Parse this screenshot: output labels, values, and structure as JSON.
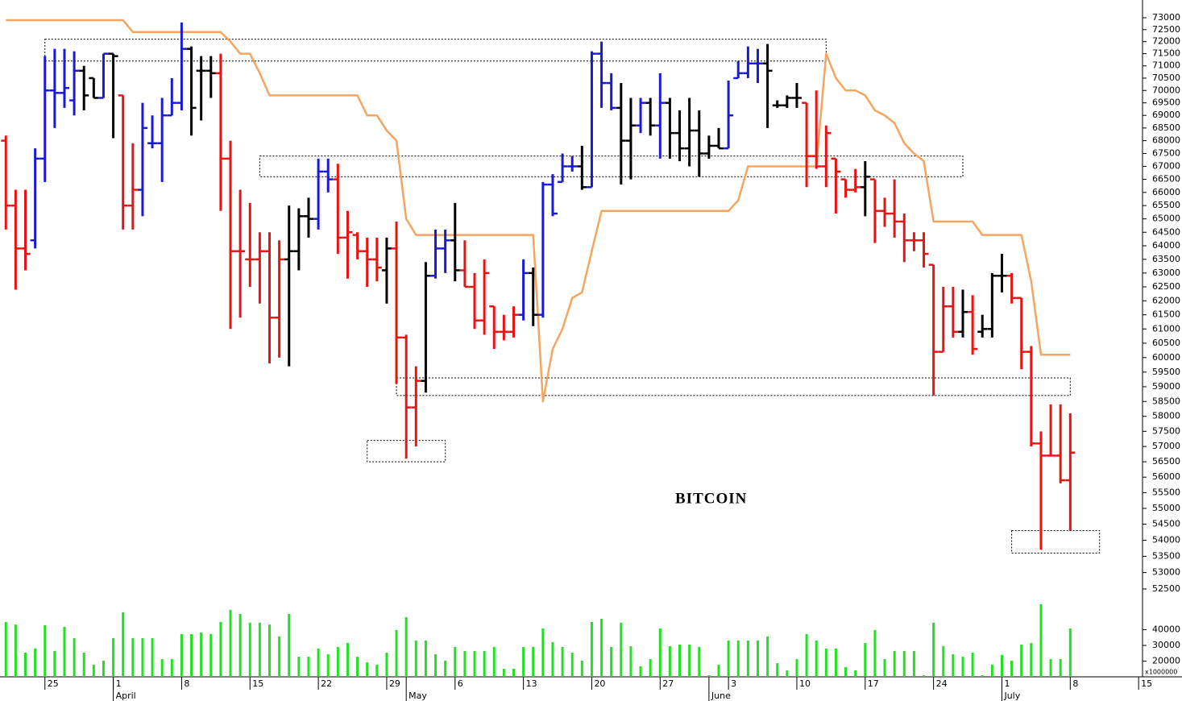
{
  "chart_data": {
    "type": "ohlc",
    "title": "BITCOIN",
    "log_scale": true,
    "ylim": [
      52500,
      73000
    ],
    "yticks": [
      52500,
      53000,
      53500,
      54000,
      54500,
      55000,
      55500,
      56000,
      56500,
      57000,
      57500,
      58000,
      58500,
      59000,
      59500,
      60000,
      60500,
      61000,
      61500,
      62000,
      62500,
      63000,
      63500,
      64000,
      64500,
      65000,
      65500,
      66000,
      66500,
      67000,
      67500,
      68000,
      68500,
      69000,
      69500,
      70000,
      70500,
      71000,
      71500,
      72000,
      72500,
      73000
    ],
    "xlim": [
      -0.6,
      116.4
    ],
    "xticks": [
      {
        "value": 4,
        "label": "25"
      },
      {
        "value": 11,
        "label": "1"
      },
      {
        "value": 18,
        "label": "8"
      },
      {
        "value": 25,
        "label": "15"
      },
      {
        "value": 32,
        "label": "22"
      },
      {
        "value": 39,
        "label": "29"
      },
      {
        "value": 46,
        "label": "6"
      },
      {
        "value": 53,
        "label": "13"
      },
      {
        "value": 60,
        "label": "20"
      },
      {
        "value": 67,
        "label": "27"
      },
      {
        "value": 74,
        "label": "3"
      },
      {
        "value": 81,
        "label": "10"
      },
      {
        "value": 88,
        "label": "17"
      },
      {
        "value": 95,
        "label": "24"
      },
      {
        "value": 102,
        "label": "1"
      },
      {
        "value": 109,
        "label": "8"
      },
      {
        "value": 116,
        "label": "15"
      }
    ],
    "month_labels": [
      {
        "value": 11,
        "label": "April"
      },
      {
        "value": 41,
        "label": "May"
      },
      {
        "value": 72,
        "label": "June"
      },
      {
        "value": 102,
        "label": "July"
      }
    ],
    "open": [
      68000,
      65500,
      63900,
      64200,
      67300,
      70000,
      69900,
      69600,
      70800,
      70500,
      69700,
      71500,
      69800,
      65500,
      66100,
      67900,
      67900,
      69000,
      69500,
      71700,
      70800,
      70800,
      70700,
      67300,
      63800,
      63500,
      63500,
      63800,
      61400,
      63500,
      63800,
      65100,
      65000,
      66800,
      66500,
      64300,
      64400,
      63800,
      63500,
      63100,
      63900,
      60700,
      58300,
      59200,
      62900,
      63900,
      64200,
      63100,
      62500,
      61300,
      61800,
      60900,
      60900,
      61500,
      63000,
      61500,
      66300,
      66400,
      67000,
      67000,
      66200,
      71500,
      70300,
      69300,
      68000,
      68600,
      69500,
      68600,
      69500,
      68300,
      67700,
      68400,
      67500,
      67800,
      67700,
      70500,
      70700,
      71100,
      71100,
      69400,
      69400,
      69700,
      69500,
      67400,
      67000,
      67300,
      66500,
      66100,
      66200,
      66500,
      65300,
      65200,
      64900,
      64200,
      64200,
      63300,
      60200,
      61800,
      60900,
      61600,
      60900,
      61000,
      62900,
      62900,
      62100,
      60200,
      57100,
      56700,
      56700,
      55900
    ],
    "high": [
      68200,
      66100,
      66100,
      67700,
      71400,
      71700,
      71700,
      71600,
      71000,
      70500,
      71500,
      71500,
      69800,
      67900,
      69500,
      69000,
      69700,
      70500,
      72800,
      71800,
      71400,
      71400,
      71500,
      68000,
      66100,
      65600,
      64500,
      64500,
      64200,
      65500,
      65400,
      65800,
      67300,
      67300,
      67100,
      65300,
      64500,
      64300,
      64300,
      64300,
      64900,
      60800,
      59700,
      63400,
      64600,
      64600,
      65600,
      64200,
      63000,
      63500,
      61800,
      61500,
      61800,
      63500,
      63200,
      66400,
      66700,
      67500,
      67400,
      67800,
      71600,
      72000,
      70700,
      70300,
      69700,
      69700,
      69700,
      70700,
      69700,
      69200,
      69700,
      69200,
      68200,
      68500,
      70400,
      71200,
      71800,
      71700,
      71900,
      69600,
      69800,
      70300,
      69500,
      70000,
      68600,
      67300,
      66500,
      66900,
      67200,
      66500,
      65800,
      66500,
      65200,
      64500,
      64500,
      63300,
      62500,
      62500,
      62400,
      62200,
      61500,
      63000,
      63700,
      63000,
      62100,
      60400,
      57500,
      58400,
      58400,
      58100
    ],
    "low": [
      64600,
      62400,
      63100,
      63900,
      66400,
      68500,
      69300,
      69000,
      69200,
      69700,
      69700,
      68100,
      64600,
      64600,
      65100,
      67700,
      66400,
      69000,
      69200,
      68200,
      68800,
      69700,
      65300,
      61000,
      61400,
      62500,
      61900,
      59800,
      60000,
      59700,
      63100,
      64300,
      64600,
      66000,
      63700,
      62800,
      63500,
      62500,
      62700,
      61900,
      59100,
      56600,
      57000,
      58800,
      62800,
      63000,
      62700,
      62500,
      61000,
      60800,
      60300,
      60600,
      60700,
      61300,
      61100,
      61400,
      65100,
      66400,
      66800,
      66100,
      66200,
      69300,
      69200,
      66300,
      66500,
      68300,
      68200,
      67300,
      67300,
      67200,
      67000,
      66600,
      67300,
      67700,
      67700,
      70500,
      70500,
      70300,
      68500,
      69300,
      69300,
      69300,
      66200,
      66900,
      66200,
      65200,
      65800,
      66000,
      65100,
      64100,
      64700,
      64300,
      63400,
      63800,
      63200,
      58700,
      60200,
      60700,
      60700,
      60100,
      60700,
      60700,
      62300,
      61900,
      59600,
      57000,
      53700,
      56700,
      55800,
      54300
    ],
    "close": [
      65500,
      63900,
      63700,
      67300,
      70000,
      69900,
      70100,
      70800,
      69800,
      69700,
      71500,
      71400,
      65500,
      66100,
      68500,
      67900,
      69000,
      69500,
      71700,
      69300,
      70800,
      70700,
      67300,
      63800,
      63800,
      63500,
      63800,
      61400,
      63500,
      63800,
      65100,
      65000,
      66800,
      66500,
      64300,
      64500,
      63800,
      63500,
      63200,
      63900,
      60700,
      58300,
      59200,
      62900,
      63900,
      64200,
      63100,
      62500,
      61300,
      63000,
      60900,
      60900,
      61500,
      63000,
      61500,
      66300,
      65200,
      67000,
      67000,
      66200,
      71500,
      70300,
      69300,
      68000,
      68600,
      69500,
      68600,
      69500,
      68300,
      67700,
      68400,
      67500,
      67800,
      67700,
      69000,
      70700,
      71100,
      71100,
      70800,
      69400,
      69700,
      69700,
      67400,
      67000,
      68300,
      66800,
      66100,
      66200,
      66600,
      65300,
      65200,
      64900,
      64200,
      64200,
      63700,
      60200,
      61800,
      60900,
      61600,
      60300,
      61000,
      62900,
      62900,
      62100,
      60200,
      57100,
      56700,
      56700,
      55900,
      56800
    ],
    "colors": [
      "#e81414",
      "#e81414",
      "#e81414",
      "#1a1ad6",
      "#1a1ad6",
      "#1a1ad6",
      "#1a1ad6",
      "#1a1ad6",
      "#000000",
      "#000000",
      "#1a1ad6",
      "#000000",
      "#e81414",
      "#e81414",
      "#1a1ad6",
      "#1a1ad6",
      "#1a1ad6",
      "#1a1ad6",
      "#1a1ad6",
      "#000000",
      "#000000",
      "#000000",
      "#e81414",
      "#e81414",
      "#e81414",
      "#e81414",
      "#e81414",
      "#e81414",
      "#e81414",
      "#000000",
      "#000000",
      "#000000",
      "#1a1ad6",
      "#1a1ad6",
      "#e81414",
      "#e81414",
      "#e81414",
      "#e81414",
      "#e81414",
      "#000000",
      "#e81414",
      "#e81414",
      "#e81414",
      "#000000",
      "#1a1ad6",
      "#1a1ad6",
      "#000000",
      "#e81414",
      "#e81414",
      "#e81414",
      "#e81414",
      "#e81414",
      "#e81414",
      "#1a1ad6",
      "#000000",
      "#1a1ad6",
      "#1a1ad6",
      "#1a1ad6",
      "#1a1ad6",
      "#000000",
      "#1a1ad6",
      "#1a1ad6",
      "#1a1ad6",
      "#000000",
      "#000000",
      "#1a1ad6",
      "#000000",
      "#1a1ad6",
      "#000000",
      "#000000",
      "#000000",
      "#000000",
      "#000000",
      "#000000",
      "#1a1ad6",
      "#1a1ad6",
      "#1a1ad6",
      "#1a1ad6",
      "#000000",
      "#000000",
      "#000000",
      "#000000",
      "#e81414",
      "#e81414",
      "#e81414",
      "#e81414",
      "#e81414",
      "#e81414",
      "#000000",
      "#e81414",
      "#e81414",
      "#e81414",
      "#e81414",
      "#e81414",
      "#e81414",
      "#e81414",
      "#e81414",
      "#e81414",
      "#000000",
      "#e81414",
      "#000000",
      "#000000",
      "#000000",
      "#e81414",
      "#e81414",
      "#e81414",
      "#e81414",
      "#e81414",
      "#e81414",
      "#e81414"
    ],
    "stop_line": {
      "color": "#f5a55f",
      "values": [
        72900,
        72900,
        72900,
        72900,
        72900,
        72900,
        72900,
        72900,
        72900,
        72900,
        72900,
        72900,
        72900,
        72400,
        72400,
        72400,
        72400,
        72400,
        72400,
        72400,
        72400,
        72400,
        72400,
        72000,
        71500,
        71500,
        70700,
        69800,
        69800,
        69800,
        69800,
        69800,
        69800,
        69800,
        69800,
        69800,
        69800,
        69000,
        69000,
        68400,
        68000,
        65000,
        64400,
        64400,
        64400,
        64400,
        64400,
        64400,
        64400,
        64400,
        64400,
        64400,
        64400,
        64400,
        64400,
        58500,
        60300,
        61000,
        62100,
        62300,
        63800,
        65300,
        65300,
        65300,
        65300,
        65300,
        65300,
        65300,
        65300,
        65300,
        65300,
        65300,
        65300,
        65300,
        65300,
        65700,
        67000,
        67000,
        67000,
        67000,
        67000,
        67000,
        67000,
        67000,
        71500,
        70500,
        70000,
        70000,
        69800,
        69200,
        69000,
        68700,
        67900,
        67500,
        67200,
        64900,
        64900,
        64900,
        64900,
        64900,
        64400,
        64400,
        64400,
        64400,
        64400,
        62700,
        60100,
        60100,
        60100,
        60100
      ]
    },
    "volume": {
      "color": "#22e022",
      "unit": "x1000000",
      "ylim": [
        10000,
        70000
      ],
      "yticks": [
        20000,
        30000,
        40000
      ],
      "values": [
        44900,
        43300,
        25400,
        28000,
        42800,
        26400,
        41800,
        34600,
        25400,
        17700,
        20300,
        34600,
        51000,
        34600,
        34600,
        34600,
        21300,
        21300,
        37200,
        37200,
        38200,
        37200,
        44900,
        52600,
        50000,
        44400,
        44400,
        43300,
        35700,
        50000,
        22800,
        22800,
        28000,
        24400,
        29000,
        31500,
        22800,
        19200,
        17700,
        25400,
        39800,
        48000,
        33100,
        33100,
        24400,
        20300,
        29000,
        26400,
        26400,
        26400,
        29000,
        15100,
        15100,
        29000,
        29000,
        40800,
        32100,
        29000,
        25400,
        20300,
        44900,
        46900,
        29000,
        44400,
        29500,
        16700,
        21300,
        40800,
        29500,
        30500,
        30500,
        29000,
        11000,
        17700,
        33100,
        33100,
        33100,
        33100,
        35700,
        18700,
        14100,
        21300,
        37200,
        33100,
        28000,
        28000,
        16200,
        14100,
        31500,
        39800,
        21300,
        26400,
        26400,
        26400,
        11000,
        44400,
        29500,
        24400,
        22800,
        25400,
        11000,
        17700,
        23900,
        20300,
        30500,
        31500,
        56200,
        21300,
        21300,
        40800
      ]
    },
    "zones": [
      {
        "x": [
          4,
          84
        ],
        "y": [
          71200,
          72100
        ]
      },
      {
        "x": [
          26,
          98
        ],
        "y": [
          66600,
          67400
        ]
      },
      {
        "x": [
          37,
          45
        ],
        "y": [
          56500,
          57200
        ]
      },
      {
        "x": [
          40,
          109
        ],
        "y": [
          58700,
          59300
        ]
      },
      {
        "x": [
          103,
          112
        ],
        "y": [
          53600,
          54300
        ]
      }
    ]
  }
}
